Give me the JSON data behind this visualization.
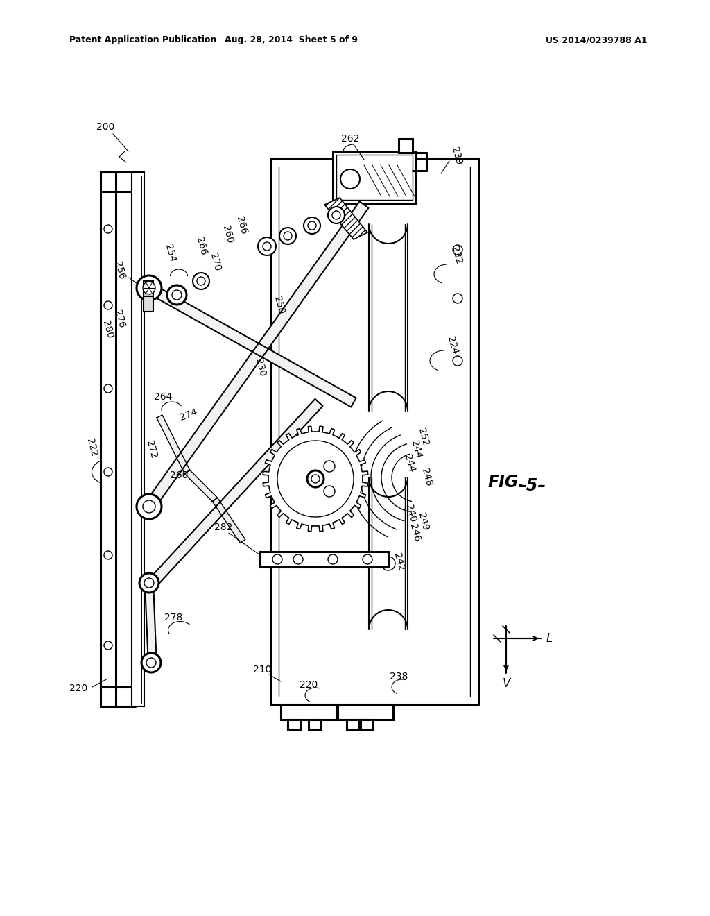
{
  "title_left": "Patent Application Publication",
  "title_mid": "Aug. 28, 2014  Sheet 5 of 9",
  "title_right": "US 2014/0239788 A1",
  "fig_label": "FIG. -5-",
  "background_color": "#ffffff",
  "line_color": "#000000"
}
